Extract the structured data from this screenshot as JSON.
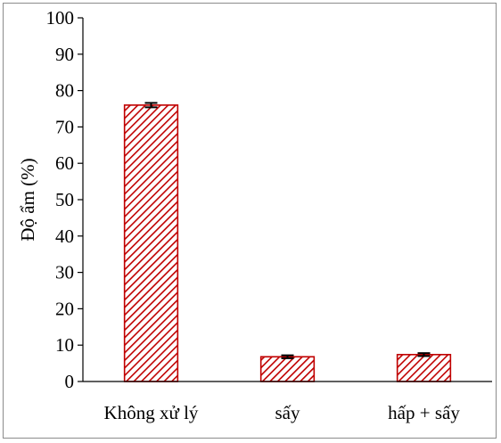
{
  "chart_data": {
    "type": "bar",
    "title": "",
    "xlabel": "",
    "ylabel": "Độ ẩm (%)",
    "categories": [
      "Không xử lý",
      "sấy",
      "hấp + sấy"
    ],
    "values": [
      76.0,
      6.8,
      7.4
    ],
    "errors": [
      0.6,
      0.4,
      0.4
    ],
    "ylim": [
      0,
      100
    ],
    "yticks": [
      0,
      10,
      20,
      30,
      40,
      50,
      60,
      70,
      80,
      90,
      100
    ],
    "grid": false,
    "legend": "none",
    "bar_fill": "hatched-diagonal",
    "colors": {
      "bar_edge": "#c00000",
      "hatch": "#c00000",
      "bar_bg": "#ffffff",
      "axis": "#000000",
      "error_bar": "#000000"
    }
  }
}
